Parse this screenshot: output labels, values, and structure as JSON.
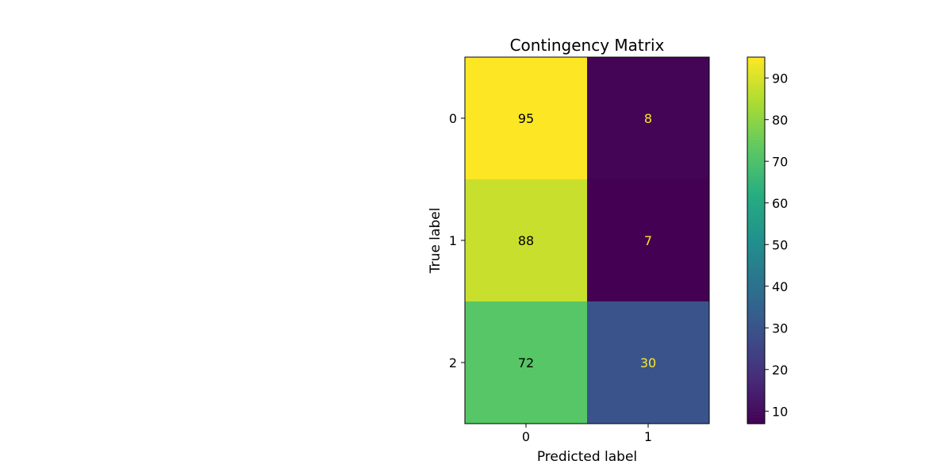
{
  "chart_data": {
    "type": "heatmap",
    "title": "Contingency Matrix",
    "xlabel": "Predicted label",
    "ylabel": "True label",
    "x_categories": [
      "0",
      "1"
    ],
    "y_categories": [
      "0",
      "1",
      "2"
    ],
    "values": [
      [
        95,
        8
      ],
      [
        88,
        7
      ],
      [
        72,
        30
      ]
    ],
    "colormap": "viridis",
    "value_range": [
      7,
      95
    ],
    "colorbar_ticks": [
      10,
      20,
      30,
      40,
      50,
      60,
      70,
      80,
      90
    ],
    "text_colors": {
      "light_cell": "#000000",
      "dark_cell": "#fde725"
    }
  }
}
